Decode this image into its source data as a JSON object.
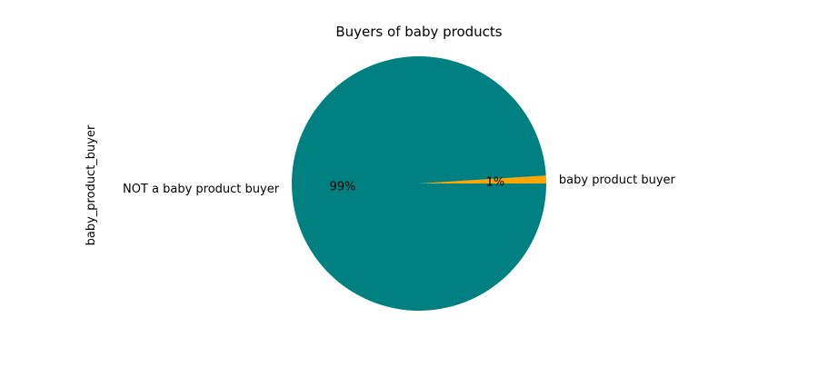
{
  "chart_data": {
    "type": "pie",
    "title": "Buyers of baby products",
    "ylabel": "baby_product_buyer",
    "slices": [
      {
        "label": "baby product buyer",
        "value": 1,
        "pct_label": "1%",
        "color": "#FFA500"
      },
      {
        "label": "NOT a baby product buyer",
        "value": 99,
        "pct_label": "99%",
        "color": "#008080"
      }
    ],
    "start_angle_deg": 0,
    "direction": "counterclockwise",
    "legend": "none"
  }
}
